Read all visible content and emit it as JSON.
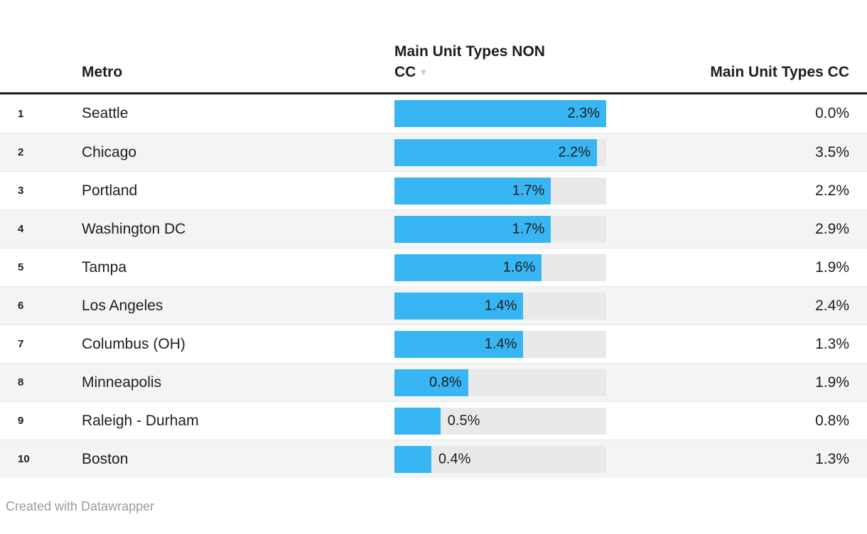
{
  "table": {
    "header": {
      "metro": "Metro",
      "non_cc_line1": "Main Unit Types NON",
      "non_cc_line2": "CC",
      "sort_icon": "▼",
      "cc": "Main Unit Types CC"
    },
    "bar_max": 2.3,
    "rows": [
      {
        "rank": "1",
        "metro": "Seattle",
        "non_cc_label": "2.3%",
        "non_cc_value": 2.3,
        "cc": "0.0%"
      },
      {
        "rank": "2",
        "metro": "Chicago",
        "non_cc_label": "2.2%",
        "non_cc_value": 2.2,
        "cc": "3.5%"
      },
      {
        "rank": "3",
        "metro": "Portland",
        "non_cc_label": "1.7%",
        "non_cc_value": 1.7,
        "cc": "2.2%"
      },
      {
        "rank": "4",
        "metro": "Washington DC",
        "non_cc_label": "1.7%",
        "non_cc_value": 1.7,
        "cc": "2.9%"
      },
      {
        "rank": "5",
        "metro": "Tampa",
        "non_cc_label": "1.6%",
        "non_cc_value": 1.6,
        "cc": "1.9%"
      },
      {
        "rank": "6",
        "metro": "Los Angeles",
        "non_cc_label": "1.4%",
        "non_cc_value": 1.4,
        "cc": "2.4%"
      },
      {
        "rank": "7",
        "metro": "Columbus (OH)",
        "non_cc_label": "1.4%",
        "non_cc_value": 1.4,
        "cc": "1.3%"
      },
      {
        "rank": "8",
        "metro": "Minneapolis",
        "non_cc_label": "0.8%",
        "non_cc_value": 0.8,
        "cc": "1.9%"
      },
      {
        "rank": "9",
        "metro": "Raleigh - Durham",
        "non_cc_label": "0.5%",
        "non_cc_value": 0.5,
        "cc": "0.8%"
      },
      {
        "rank": "10",
        "metro": "Boston",
        "non_cc_label": "0.4%",
        "non_cc_value": 0.4,
        "cc": "1.3%"
      }
    ]
  },
  "footer": {
    "credit": "Created with Datawrapper"
  },
  "colors": {
    "bar": "#38b6f3",
    "track": "#e9e9e9",
    "stripe": "#f4f4f4",
    "header_border": "#1a1a1a",
    "text": "#1d1d1d",
    "muted": "#9b9b9b",
    "sort_arrow": "#c9c9c9"
  },
  "chart_data": {
    "type": "table",
    "title": "",
    "categories": [
      "Seattle",
      "Chicago",
      "Portland",
      "Washington DC",
      "Tampa",
      "Los Angeles",
      "Columbus (OH)",
      "Minneapolis",
      "Raleigh - Durham",
      "Boston"
    ],
    "series": [
      {
        "name": "Main Unit Types NON CC",
        "values": [
          2.3,
          2.2,
          1.7,
          1.7,
          1.6,
          1.4,
          1.4,
          0.8,
          0.5,
          0.4
        ]
      },
      {
        "name": "Main Unit Types CC",
        "values": [
          0.0,
          3.5,
          2.2,
          2.9,
          1.9,
          2.4,
          1.3,
          1.9,
          0.8,
          1.3
        ]
      }
    ],
    "bar_column": "Main Unit Types NON CC",
    "bar_axis_max": 2.3,
    "sorted_by": "Main Unit Types NON CC",
    "sort_direction": "descending",
    "value_format": "percent_one_decimal",
    "credit": "Created with Datawrapper"
  }
}
